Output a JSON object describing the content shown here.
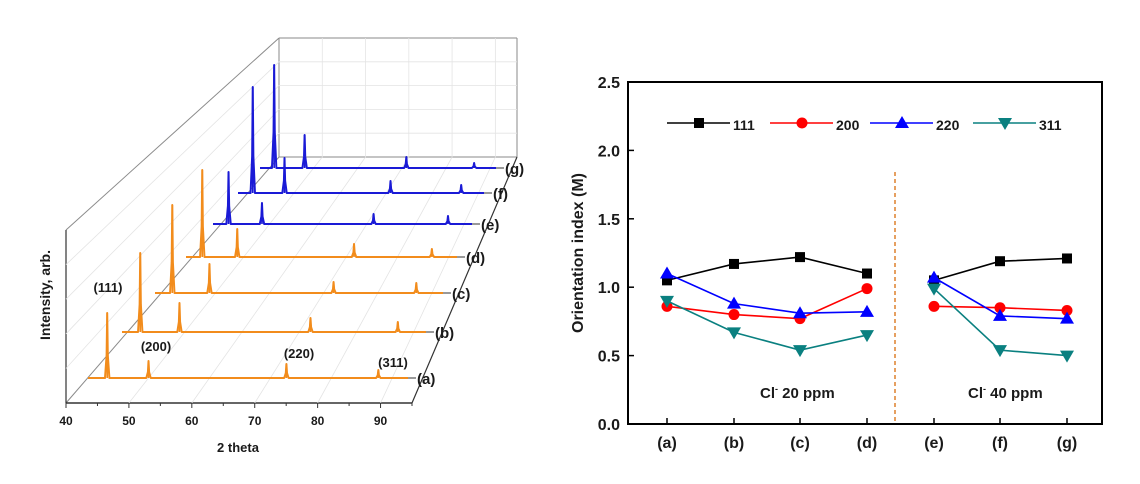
{
  "chart_data": [
    {
      "type": "line",
      "subtype": "3d-waterfall",
      "title": "",
      "xlabel": "2 theta",
      "ylabel": "Intensity, arb.",
      "xlim": [
        40,
        95
      ],
      "xticks": [
        "40",
        "50",
        "60",
        "70",
        "80",
        "90"
      ],
      "peak_labels": [
        {
          "label": "(111)",
          "x": 43.3
        },
        {
          "label": "(200)",
          "x": 50.4
        },
        {
          "label": "(220)",
          "x": 74.1
        },
        {
          "label": "(311)",
          "x": 89.9
        }
      ],
      "peak_positions": [
        43.3,
        50.4,
        74.1,
        89.9
      ],
      "series": [
        {
          "name": "(a)",
          "color": "#f28c1c",
          "peak_intensities": [
            65,
            17,
            14,
            8
          ]
        },
        {
          "name": "(b)",
          "color": "#f28c1c",
          "peak_intensities": [
            79,
            29,
            14,
            10
          ]
        },
        {
          "name": "(c)",
          "color": "#f28c1c",
          "peak_intensities": [
            88,
            29,
            11,
            10
          ]
        },
        {
          "name": "(d)",
          "color": "#f28c1c",
          "peak_intensities": [
            87,
            28,
            13,
            8
          ]
        },
        {
          "name": "(e)",
          "color": "#1a1ad6",
          "peak_intensities": [
            52,
            21,
            10,
            8
          ]
        },
        {
          "name": "(f)",
          "color": "#1a1ad6",
          "peak_intensities": [
            106,
            35,
            12,
            8
          ]
        },
        {
          "name": "(g)",
          "color": "#1a1ad6",
          "peak_intensities": [
            103,
            33,
            11,
            5
          ]
        }
      ]
    },
    {
      "type": "line",
      "title": "",
      "xlabel": "",
      "ylabel": "Orientation index (M)",
      "ylim": [
        0.0,
        2.5
      ],
      "yticks": [
        "0.0",
        "0.5",
        "1.0",
        "1.5",
        "2.0",
        "2.5"
      ],
      "categories": [
        "(a)",
        "(b)",
        "(c)",
        "(d)",
        "(e)",
        "(f)",
        "(g)"
      ],
      "groups": [
        {
          "label_main": "Cl",
          "label_sup": "-",
          "label_rest": " 20 ppm",
          "categories": [
            "(a)",
            "(b)",
            "(c)",
            "(d)"
          ]
        },
        {
          "label_main": "Cl",
          "label_sup": "-",
          "label_rest": " 40 ppm",
          "categories": [
            "(e)",
            "(f)",
            "(g)"
          ]
        }
      ],
      "divider_color": "#e0883a",
      "legend_position": "top",
      "series": [
        {
          "name": "111",
          "color": "#000000",
          "marker": "square",
          "values": [
            1.05,
            1.17,
            1.22,
            1.1,
            1.05,
            1.19,
            1.21
          ]
        },
        {
          "name": "200",
          "color": "#ff0000",
          "marker": "circle",
          "values": [
            0.86,
            0.8,
            0.77,
            0.99,
            0.86,
            0.85,
            0.83
          ]
        },
        {
          "name": "220",
          "color": "#0000ff",
          "marker": "triangle-up",
          "values": [
            1.1,
            0.88,
            0.81,
            0.82,
            1.07,
            0.79,
            0.77
          ]
        },
        {
          "name": "311",
          "color": "#0a8080",
          "marker": "triangle-down",
          "values": [
            0.9,
            0.67,
            0.54,
            0.65,
            0.99,
            0.54,
            0.5
          ]
        }
      ]
    }
  ]
}
